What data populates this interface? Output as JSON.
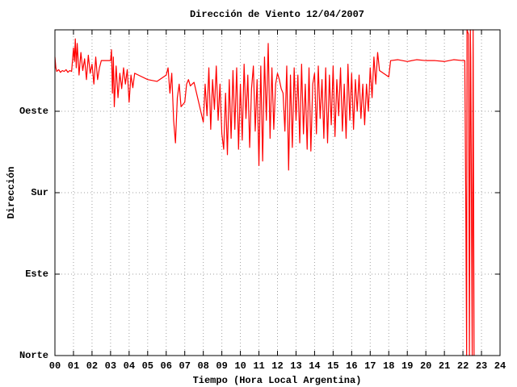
{
  "chart_data": {
    "type": "line",
    "title": "Dirección de Viento 12/04/2007",
    "x_label": "Tiempo (Hora Local Argentina)",
    "y_label": "Dirección",
    "color": "#ff0000",
    "grid": true,
    "xlim": [
      0,
      24
    ],
    "ylim": [
      0,
      360
    ],
    "xticks": [
      {
        "value": 0,
        "label": "00"
      },
      {
        "value": 1,
        "label": "01"
      },
      {
        "value": 2,
        "label": "02"
      },
      {
        "value": 3,
        "label": "03"
      },
      {
        "value": 4,
        "label": "04"
      },
      {
        "value": 5,
        "label": "05"
      },
      {
        "value": 6,
        "label": "06"
      },
      {
        "value": 7,
        "label": "07"
      },
      {
        "value": 8,
        "label": "08"
      },
      {
        "value": 9,
        "label": "09"
      },
      10,
      11,
      12,
      13,
      14,
      15,
      16,
      17,
      18,
      19,
      20,
      21,
      22,
      23,
      24
    ],
    "yticks": [
      {
        "value": 0,
        "label": "Norte"
      },
      {
        "value": 90,
        "label": "Este"
      },
      {
        "value": 180,
        "label": "Sur"
      },
      {
        "value": 270,
        "label": "Oeste"
      }
    ],
    "x": [
      0,
      0.05,
      0.1,
      0.2,
      0.3,
      0.4,
      0.5,
      0.6,
      0.7,
      0.8,
      0.9,
      1.0,
      1.05,
      1.1,
      1.15,
      1.2,
      1.3,
      1.4,
      1.5,
      1.6,
      1.7,
      1.8,
      1.9,
      2.0,
      2.1,
      2.2,
      2.3,
      2.4,
      2.5,
      2.8,
      3.0,
      3.05,
      3.1,
      3.15,
      3.2,
      3.3,
      3.4,
      3.5,
      3.6,
      3.7,
      3.8,
      3.9,
      4.0,
      4.1,
      4.2,
      4.3,
      4.5,
      5.0,
      5.5,
      6.0,
      6.1,
      6.2,
      6.3,
      6.4,
      6.5,
      6.6,
      6.7,
      6.8,
      7.0,
      7.1,
      7.2,
      7.3,
      7.5,
      8.0,
      8.1,
      8.2,
      8.3,
      8.4,
      8.5,
      8.6,
      8.7,
      8.8,
      8.9,
      9.0,
      9.1,
      9.2,
      9.3,
      9.4,
      9.5,
      9.6,
      9.7,
      9.8,
      9.9,
      10.0,
      10.1,
      10.2,
      10.3,
      10.4,
      10.5,
      10.6,
      10.7,
      10.8,
      10.9,
      11.0,
      11.1,
      11.2,
      11.3,
      11.4,
      11.5,
      11.6,
      11.7,
      11.8,
      11.9,
      12.0,
      12.1,
      12.2,
      12.3,
      12.4,
      12.5,
      12.6,
      12.7,
      12.8,
      12.9,
      13.0,
      13.1,
      13.2,
      13.3,
      13.4,
      13.5,
      13.6,
      13.7,
      13.8,
      13.9,
      14.0,
      14.1,
      14.2,
      14.3,
      14.4,
      14.5,
      14.6,
      14.7,
      14.8,
      14.9,
      15.0,
      15.1,
      15.2,
      15.3,
      15.4,
      15.5,
      15.6,
      15.7,
      15.8,
      15.9,
      16.0,
      16.1,
      16.2,
      16.3,
      16.4,
      16.5,
      16.6,
      16.7,
      16.8,
      16.9,
      17.0,
      17.1,
      17.2,
      17.3,
      17.4,
      17.5,
      18.0,
      18.1,
      18.5,
      19.0,
      19.5,
      20.0,
      20.5,
      21.0,
      21.5,
      22.0,
      22.1,
      22.15,
      22.2,
      22.22,
      22.3,
      22.35,
      22.4,
      22.42,
      22.5,
      22.55,
      22.6
    ],
    "values": [
      330,
      318,
      314,
      316,
      313,
      315,
      314,
      316,
      313,
      315,
      314,
      340,
      325,
      350,
      318,
      345,
      310,
      335,
      315,
      328,
      305,
      332,
      312,
      322,
      300,
      330,
      305,
      318,
      326,
      326,
      326,
      338,
      290,
      330,
      275,
      320,
      285,
      312,
      295,
      318,
      300,
      316,
      280,
      310,
      296,
      312,
      310,
      305,
      303,
      310,
      318,
      290,
      312,
      260,
      235,
      285,
      300,
      275,
      280,
      300,
      305,
      298,
      302,
      258,
      300,
      265,
      318,
      250,
      305,
      272,
      320,
      260,
      300,
      245,
      228,
      290,
      222,
      305,
      240,
      315,
      250,
      318,
      228,
      300,
      238,
      322,
      262,
      310,
      230,
      295,
      320,
      248,
      305,
      210,
      320,
      215,
      330,
      260,
      345,
      240,
      318,
      250,
      300,
      312,
      305,
      295,
      290,
      248,
      320,
      205,
      310,
      230,
      318,
      260,
      310,
      235,
      322,
      245,
      300,
      228,
      318,
      226,
      300,
      312,
      245,
      320,
      262,
      305,
      240,
      318,
      235,
      310,
      255,
      320,
      242,
      305,
      265,
      318,
      248,
      300,
      240,
      322,
      260,
      312,
      250,
      305,
      270,
      310,
      262,
      300,
      255,
      300,
      270,
      318,
      285,
      330,
      300,
      335,
      315,
      308,
      326,
      327,
      325,
      327,
      326,
      326,
      325,
      327,
      326,
      326,
      180,
      0,
      360,
      355,
      0,
      360,
      330,
      0,
      360,
      0
    ]
  }
}
